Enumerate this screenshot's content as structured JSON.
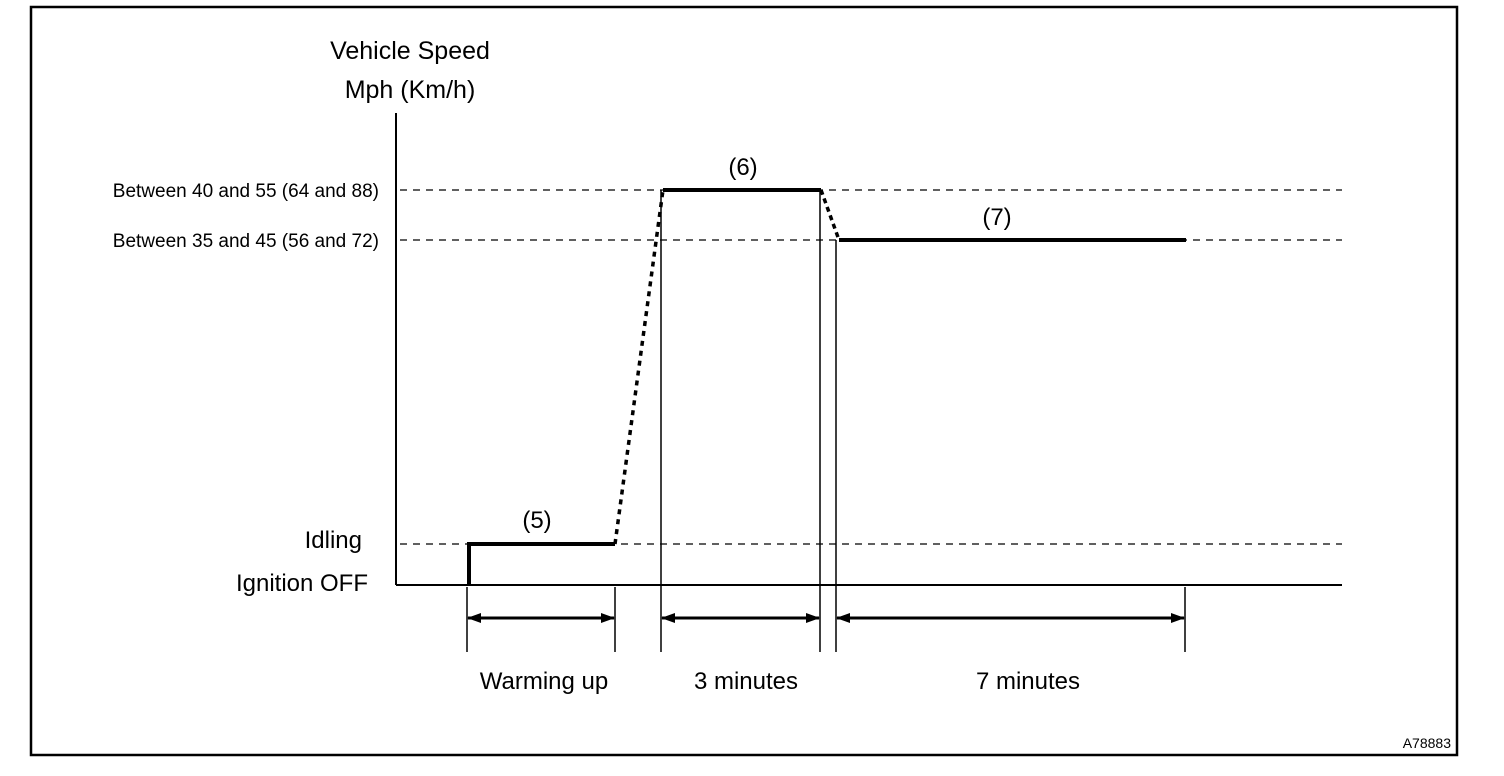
{
  "diagram": {
    "y_axis_title": [
      "Vehicle Speed",
      "Mph (Km/h)"
    ],
    "levels": {
      "high": "Between 40 and 55 (64 and 88)",
      "mid": "Between 35 and 45 (56 and 72)",
      "idle": "Idling",
      "off": "Ignition OFF"
    },
    "steps": [
      "(5)",
      "(6)",
      "(7)"
    ],
    "durations": [
      "Warming up",
      "3 minutes",
      "7 minutes"
    ],
    "figure_code": "A78883"
  }
}
